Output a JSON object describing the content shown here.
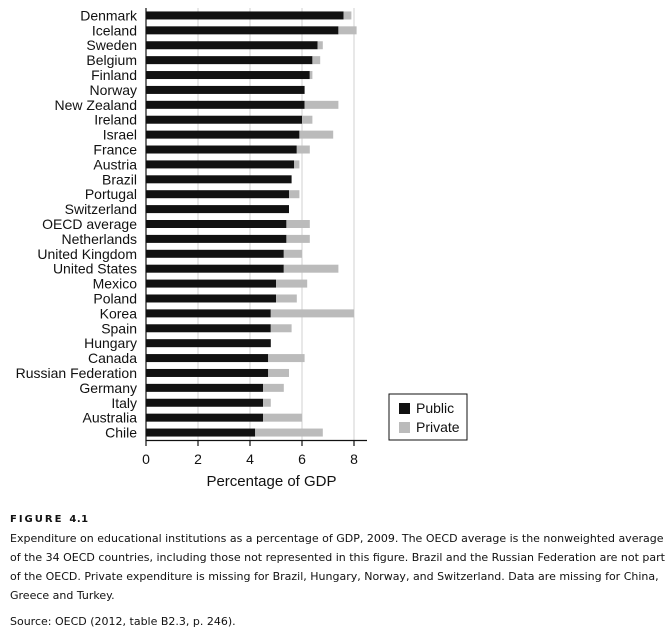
{
  "chart_data": {
    "type": "bar",
    "orientation": "horizontal",
    "stacked": true,
    "categories": [
      "Denmark",
      "Iceland",
      "Sweden",
      "Belgium",
      "Finland",
      "Norway",
      "New Zealand",
      "Ireland",
      "Israel",
      "France",
      "Austria",
      "Brazil",
      "Portugal",
      "Switzerland",
      "OECD average",
      "Netherlands",
      "United Kingdom",
      "United States",
      "Mexico",
      "Poland",
      "Korea",
      "Spain",
      "Hungary",
      "Canada",
      "Russian Federation",
      "Germany",
      "Italy",
      "Australia",
      "Chile"
    ],
    "series": [
      {
        "name": "Public",
        "color": "#111111",
        "values": [
          7.6,
          7.4,
          6.6,
          6.4,
          6.3,
          6.1,
          6.1,
          6.0,
          5.9,
          5.8,
          5.7,
          5.6,
          5.5,
          5.5,
          5.4,
          5.4,
          5.3,
          5.3,
          5.0,
          5.0,
          4.8,
          4.8,
          4.8,
          4.7,
          4.7,
          4.5,
          4.5,
          4.5,
          4.2
        ]
      },
      {
        "name": "Private",
        "color": "#bbbbbb",
        "values": [
          0.3,
          0.7,
          0.2,
          0.3,
          0.1,
          0.0,
          1.3,
          0.4,
          1.3,
          0.5,
          0.2,
          0.0,
          0.4,
          0.0,
          0.9,
          0.9,
          0.7,
          2.1,
          1.2,
          0.8,
          3.2,
          0.8,
          0.0,
          1.4,
          0.8,
          0.8,
          0.3,
          1.5,
          2.6
        ]
      }
    ],
    "xlabel": "Percentage of GDP",
    "xlim": [
      0,
      8.5
    ],
    "xticks": [
      0,
      2,
      4,
      6,
      8
    ],
    "legend_position": "bottom-right",
    "grid": "vertical lines at ticks"
  },
  "caption": {
    "figure_word": "FIGURE",
    "figure_number": "4.1",
    "text": "Expenditure on educational institutions as a percentage of GDP, 2009. The OECD average is the nonweighted average of the 34 OECD countries, including those not represented in this figure. Brazil and the Russian Federation are not part of the OECD. Private expenditure is missing for Brazil, Hungary, Norway, and Switzerland. Data are missing for China, Greece and Turkey.",
    "source": "Source: OECD (2012, table B2.3, p. 246)."
  }
}
